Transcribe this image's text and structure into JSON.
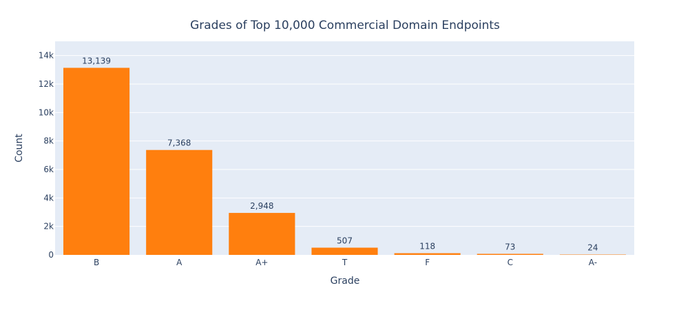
{
  "chart_data": {
    "type": "bar",
    "title": "Grades of Top 10,000 Commercial Domain Endpoints",
    "xlabel": "Grade",
    "ylabel": "Count",
    "categories": [
      "B",
      "A",
      "A+",
      "T",
      "F",
      "C",
      "A-"
    ],
    "values": [
      13139,
      7368,
      2948,
      507,
      118,
      73,
      24
    ],
    "data_labels": [
      "13,139",
      "7,368",
      "2,948",
      "507",
      "118",
      "73",
      "24"
    ],
    "ylim": [
      0,
      15000
    ],
    "y_ticks": [
      0,
      2000,
      4000,
      6000,
      8000,
      10000,
      12000,
      14000
    ],
    "y_tick_labels": [
      "0",
      "2k",
      "4k",
      "6k",
      "8k",
      "10k",
      "12k",
      "14k"
    ],
    "grid": true,
    "colors": {
      "bar": "#ff7f0e",
      "plot_background": "#e5ecf6",
      "grid": "#ffffff",
      "text": "#2a3f5f"
    }
  }
}
